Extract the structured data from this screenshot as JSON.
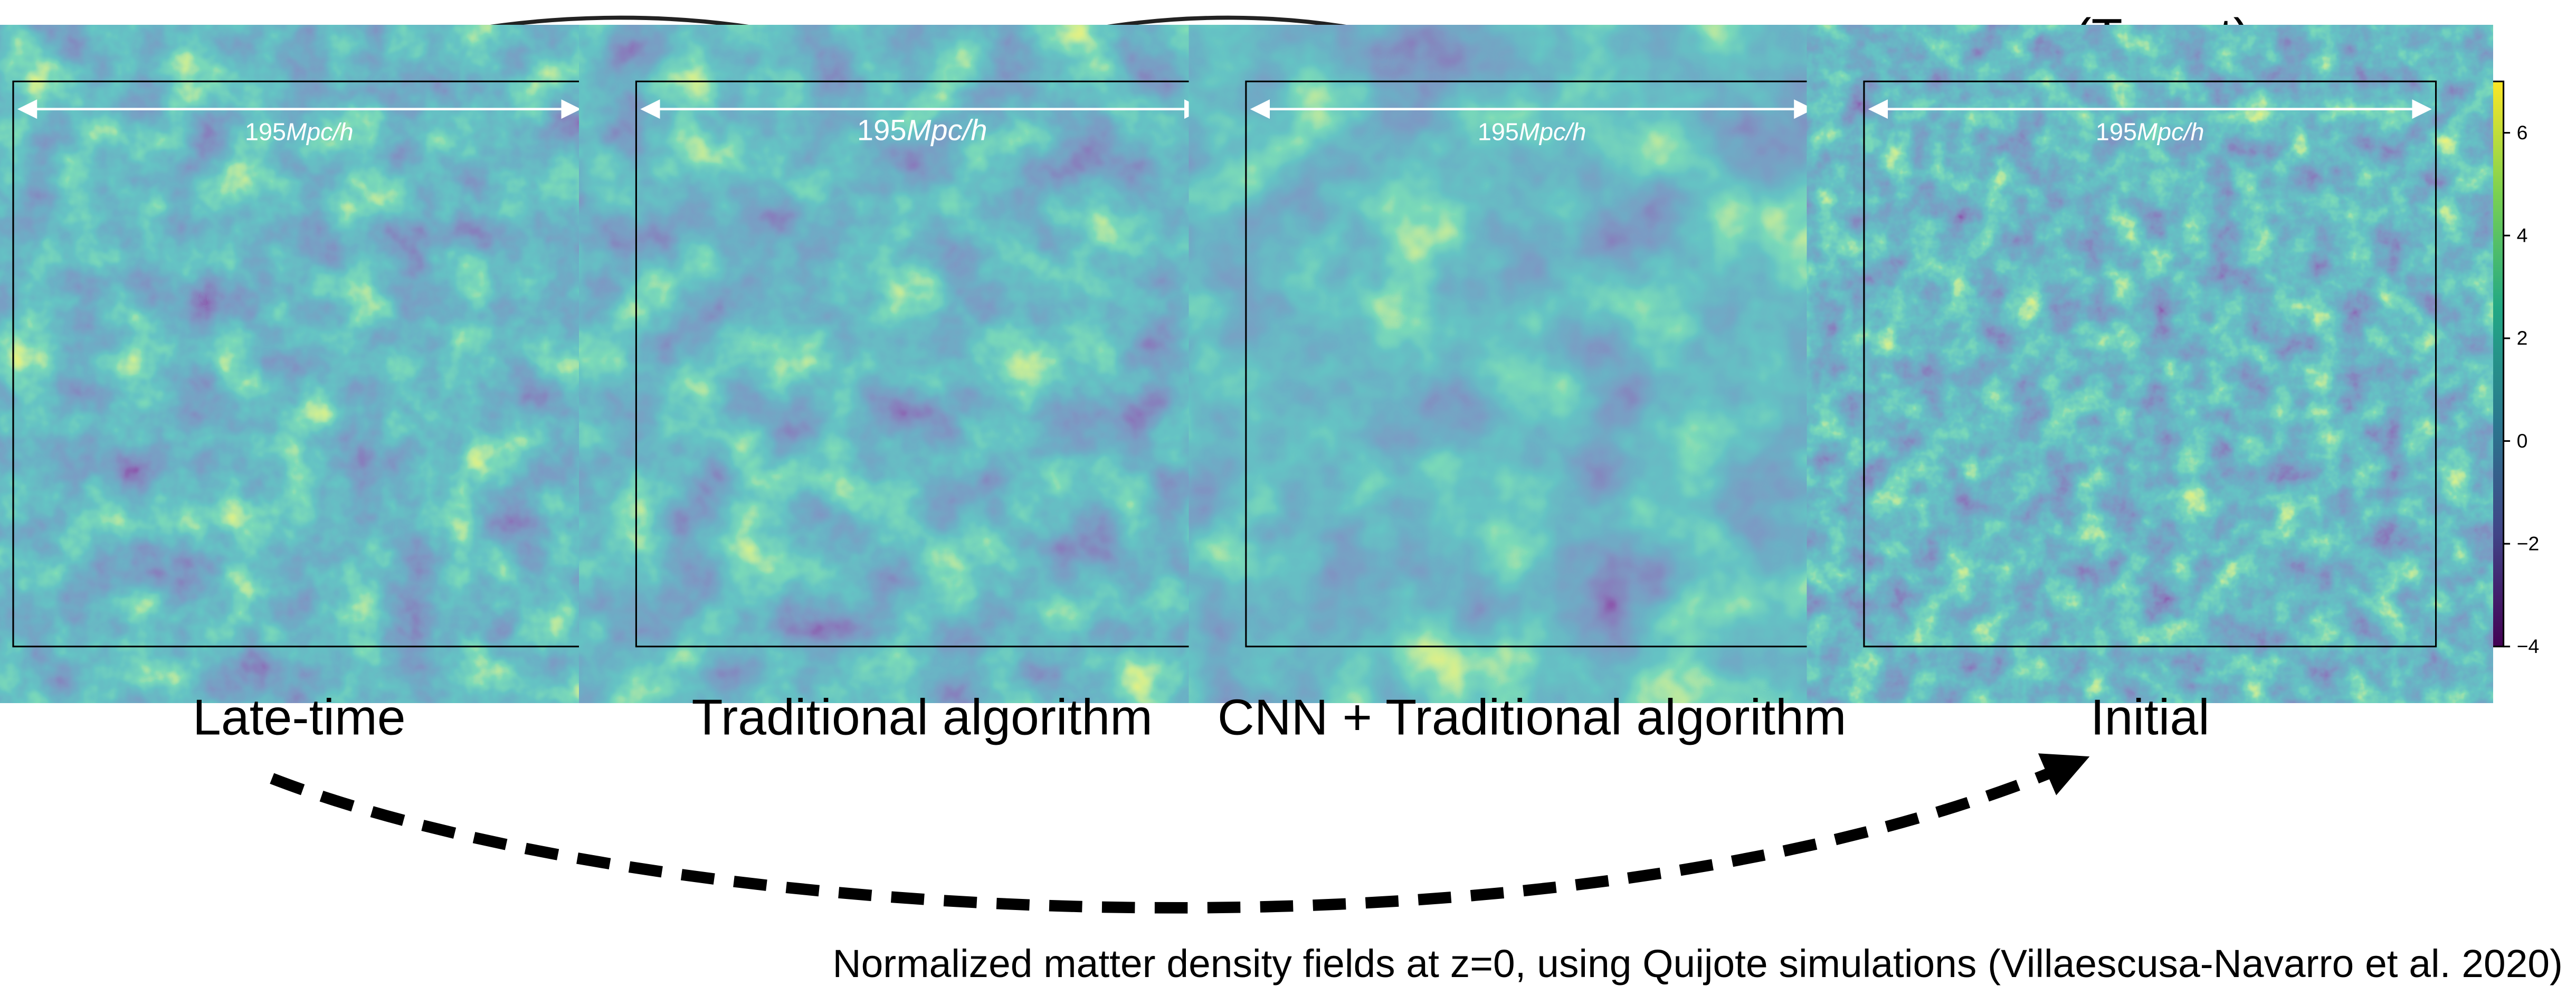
{
  "header": {
    "target_label": "(Target)"
  },
  "panels": [
    {
      "label": "Late-time",
      "scale": "195",
      "unit": "Mpc/h"
    },
    {
      "label": "Traditional algorithm",
      "scale": "195",
      "unit": "Mpc/h"
    },
    {
      "label": "CNN + Traditional algorithm",
      "scale": "195",
      "unit": "Mpc/h"
    },
    {
      "label": "Initial",
      "scale": "195",
      "unit": "Mpc/h"
    }
  ],
  "colorbar": {
    "lim": [
      -4,
      7
    ],
    "ticks": [
      {
        "value": -4,
        "label": "−4"
      },
      {
        "value": -2,
        "label": "−2"
      },
      0,
      2,
      4,
      6
    ]
  },
  "caption": "Normalized matter density fields at z=0, using Quijote simulations (Villaescusa-Navarro et al. 2020)"
}
